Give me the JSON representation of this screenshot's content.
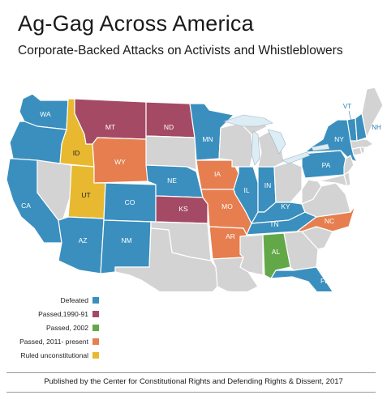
{
  "title": "Ag-Gag Across America",
  "subtitle": "Corporate-Backed Attacks on Activists and Whistleblowers",
  "colors": {
    "defeated": "#3a8fbe",
    "passed_1990_91": "#a44a64",
    "passed_2002": "#63a848",
    "passed_2011_present": "#e67e4f",
    "ruled_unconstitutional": "#e8b930",
    "no_action": "#d3d3d3",
    "water": "#dcedf5",
    "border": "#ffffff"
  },
  "legend": [
    {
      "label": "Defeated",
      "category": "defeated"
    },
    {
      "label": "Passed,1990-91",
      "category": "passed_1990_91"
    },
    {
      "label": "Passed, 2002",
      "category": "passed_2002"
    },
    {
      "label": "Passed, 2011- present",
      "category": "passed_2011_present"
    },
    {
      "label": "Ruled unconstitutional",
      "category": "ruled_unconstitutional"
    }
  ],
  "states": {
    "WA": {
      "label": "WA",
      "category": "defeated"
    },
    "OR": {
      "label": "",
      "category": "defeated"
    },
    "CA": {
      "label": "CA",
      "category": "defeated"
    },
    "ID": {
      "label": "ID",
      "category": "ruled_unconstitutional"
    },
    "UT": {
      "label": "UT",
      "category": "ruled_unconstitutional"
    },
    "MT": {
      "label": "MT",
      "category": "passed_1990_91"
    },
    "ND": {
      "label": "ND",
      "category": "passed_1990_91"
    },
    "KS": {
      "label": "KS",
      "category": "passed_1990_91"
    },
    "WY": {
      "label": "WY",
      "category": "passed_2011_present"
    },
    "IA": {
      "label": "IA",
      "category": "passed_2011_present"
    },
    "MO": {
      "label": "MO",
      "category": "passed_2011_present"
    },
    "AR": {
      "label": "AR",
      "category": "passed_2011_present"
    },
    "NC": {
      "label": "NC",
      "category": "passed_2011_present"
    },
    "AL": {
      "label": "AL",
      "category": "passed_2002"
    },
    "AZ": {
      "label": "AZ",
      "category": "defeated"
    },
    "NM": {
      "label": "NM",
      "category": "defeated"
    },
    "CO": {
      "label": "CO",
      "category": "defeated"
    },
    "NE": {
      "label": "NE",
      "category": "defeated"
    },
    "MN": {
      "label": "MN",
      "category": "defeated"
    },
    "IL": {
      "label": "IL",
      "category": "defeated"
    },
    "IN": {
      "label": "IN",
      "category": "defeated"
    },
    "KY": {
      "label": "KY",
      "category": "defeated"
    },
    "TN": {
      "label": "TN",
      "category": "defeated"
    },
    "FL": {
      "label": "FL",
      "category": "defeated"
    },
    "PA": {
      "label": "PA",
      "category": "defeated"
    },
    "NY": {
      "label": "NY",
      "category": "defeated"
    },
    "VT": {
      "label": "VT",
      "category": "defeated"
    },
    "NH": {
      "label": "NH",
      "category": "defeated"
    },
    "NV": {
      "label": "",
      "category": "no_action"
    },
    "SD": {
      "label": "",
      "category": "no_action"
    },
    "OK": {
      "label": "",
      "category": "no_action"
    },
    "TX": {
      "label": "",
      "category": "no_action"
    },
    "LA": {
      "label": "",
      "category": "no_action"
    },
    "MS": {
      "label": "",
      "category": "no_action"
    },
    "WI": {
      "label": "",
      "category": "no_action"
    },
    "MI": {
      "label": "",
      "category": "no_action"
    },
    "OH": {
      "label": "",
      "category": "no_action"
    },
    "WV": {
      "label": "",
      "category": "no_action"
    },
    "VA": {
      "label": "",
      "category": "no_action"
    },
    "SC": {
      "label": "",
      "category": "no_action"
    },
    "GA": {
      "label": "",
      "category": "no_action"
    },
    "ME": {
      "label": "",
      "category": "no_action"
    },
    "MA": {
      "label": "",
      "category": "no_action"
    },
    "CT": {
      "label": "",
      "category": "no_action"
    },
    "NJ": {
      "label": "",
      "category": "no_action"
    },
    "MD": {
      "label": "",
      "category": "no_action"
    },
    "DE": {
      "label": "",
      "category": "no_action"
    },
    "RI": {
      "label": "",
      "category": "no_action"
    }
  },
  "footer": "Published by the Center for Constitutional Rights and Defending Rights & Dissent, 2017"
}
